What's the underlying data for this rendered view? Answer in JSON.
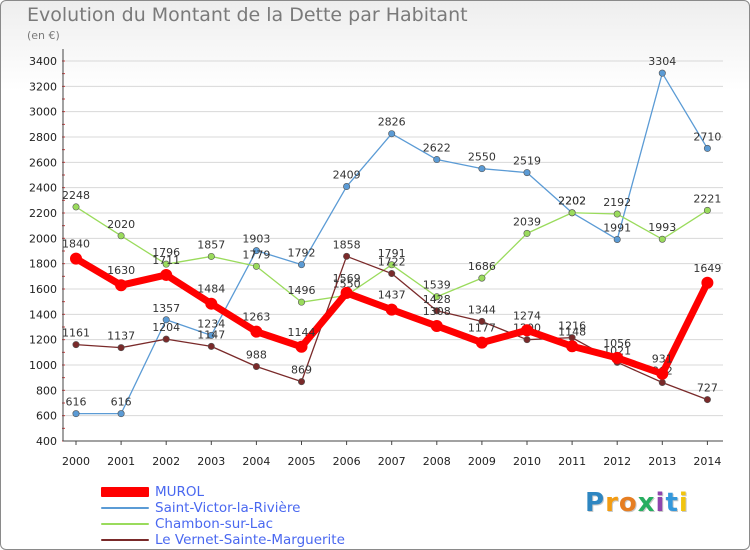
{
  "header": {
    "title": "Evolution du Montant de la Dette par Habitant",
    "unit": "(en €)"
  },
  "chart_data": {
    "type": "line",
    "title": "Evolution du Montant de la Dette par Habitant",
    "ylabel": "(en €)",
    "xlabel": "",
    "ylim": [
      400,
      3400
    ],
    "y_ticks": [
      "400",
      "600",
      "800",
      "1000",
      "1200",
      "1400",
      "1600",
      "1800",
      "2000",
      "2200",
      "2400",
      "2600",
      "2800",
      "3000",
      "3200",
      "3400"
    ],
    "x": [
      "2000",
      "2001",
      "2002",
      "2003",
      "2004",
      "2005",
      "2006",
      "2007",
      "2008",
      "2009",
      "2010",
      "2011",
      "2012",
      "2013",
      "2014"
    ],
    "grid": "horizontal",
    "legend_position": "bottom-left",
    "series": [
      {
        "name": "Saint-Victor-la-Rivière",
        "color": "#5b9bd5",
        "values": [
          616,
          616,
          1357,
          1234,
          1903,
          1792,
          2409,
          2826,
          2622,
          2550,
          2519,
          2202,
          1991,
          3304,
          2710
        ]
      },
      {
        "name": "Chambon-sur-Lac",
        "color": "#9adb5c",
        "values": [
          2248,
          2020,
          1796,
          1857,
          1779,
          1496,
          1550,
          1791,
          1539,
          1686,
          2039,
          2202,
          2192,
          1993,
          2221
        ]
      },
      {
        "name": "Le Vernet-Sainte-Marguerite",
        "color": "#7a2a2a",
        "values": [
          1161,
          1137,
          1204,
          1147,
          988,
          869,
          1858,
          1722,
          1428,
          1344,
          1200,
          1216,
          1021,
          862,
          727
        ]
      },
      {
        "name": "MUROL",
        "color": "#ff0000",
        "values": [
          1840,
          1630,
          1711,
          1484,
          1263,
          1144,
          1569,
          1437,
          1308,
          1177,
          1274,
          1148,
          1056,
          931,
          1649
        ]
      }
    ],
    "legend_order": [
      "MUROL",
      "Saint-Victor-la-Rivière",
      "Chambon-sur-Lac",
      "Le Vernet-Sainte-Marguerite"
    ]
  },
  "legend": {
    "items": [
      {
        "label": "MUROL",
        "color": "#ff0000"
      },
      {
        "label": "Saint-Victor-la-Rivière",
        "color": "#5b9bd5"
      },
      {
        "label": "Chambon-sur-Lac",
        "color": "#9adb5c"
      },
      {
        "label": "Le Vernet-Sainte-Marguerite",
        "color": "#7a2a2a"
      }
    ]
  },
  "logo": {
    "letters": [
      {
        "char": "P",
        "color": "#2e86c1"
      },
      {
        "char": "r",
        "color": "#f39c12"
      },
      {
        "char": "o",
        "color": "#e67e22"
      },
      {
        "char": "x",
        "color": "#27ae60"
      },
      {
        "char": "i",
        "color": "#8e44ad"
      },
      {
        "char": "t",
        "color": "#3498db"
      },
      {
        "char": "i",
        "color": "#f1c40f"
      }
    ]
  }
}
